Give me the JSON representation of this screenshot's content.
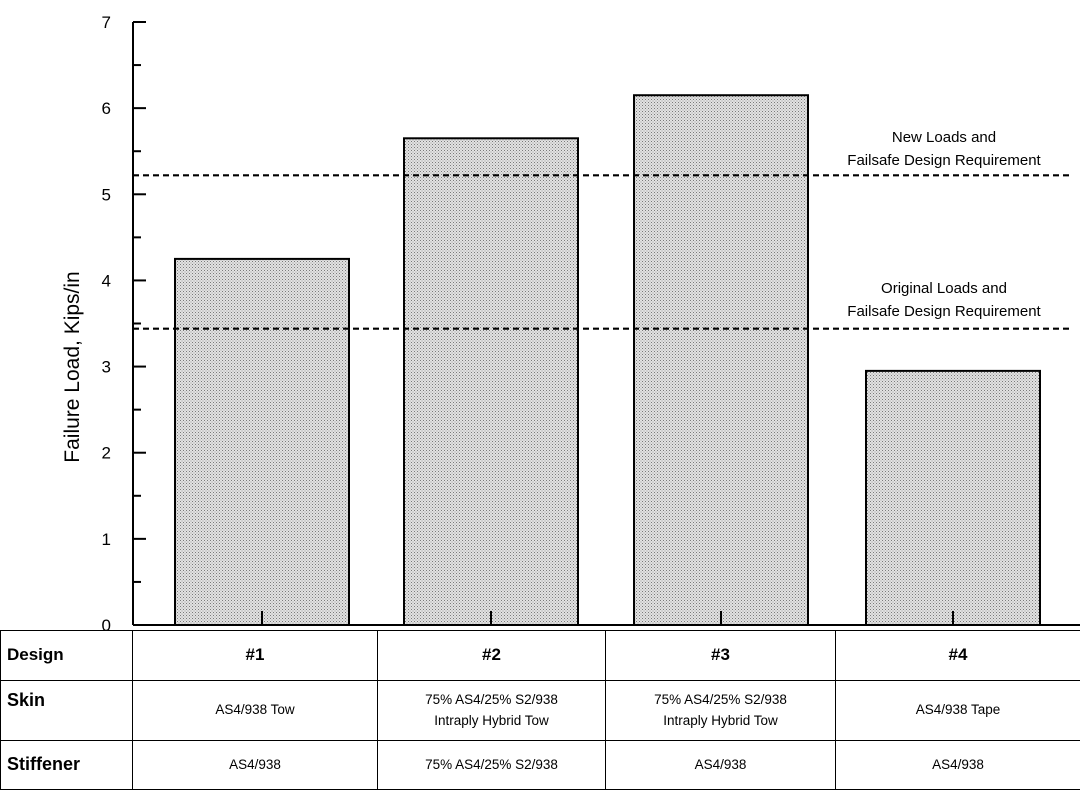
{
  "chart_data": {
    "type": "bar",
    "categories": [
      "#1",
      "#2",
      "#3",
      "#4"
    ],
    "values": [
      4.25,
      5.65,
      6.15,
      2.95
    ],
    "title": "",
    "xlabel": "",
    "ylabel": "Failure Load, Kips/in",
    "ylim": [
      0,
      7
    ],
    "yticks": [
      "0",
      "1",
      "2",
      "3",
      "4",
      "5",
      "6",
      "7"
    ],
    "bar_fill": "#d4d4d4",
    "reference_lines": [
      {
        "value": 5.22,
        "label_line1": "New Loads and",
        "label_line2": "Failsafe Design Requirement"
      },
      {
        "value": 3.44,
        "label_line1": "Original Loads and",
        "label_line2": "Failsafe Design Requirement"
      }
    ],
    "legend": "none",
    "grid": false
  },
  "table": {
    "headers": {
      "design": "Design",
      "skin": "Skin",
      "stiffener": "Stiffener"
    },
    "columns": [
      {
        "design": "#1",
        "skin_line1": "AS4/938 Tow",
        "skin_line2": "",
        "stiffener": "AS4/938"
      },
      {
        "design": "#2",
        "skin_line1": "75% AS4/25% S2/938",
        "skin_line2": "Intraply Hybrid Tow",
        "stiffener": "75% AS4/25% S2/938"
      },
      {
        "design": "#3",
        "skin_line1": "75% AS4/25% S2/938",
        "skin_line2": "Intraply Hybrid Tow",
        "stiffener": "AS4/938"
      },
      {
        "design": "#4",
        "skin_line1": "AS4/938 Tape",
        "skin_line2": "",
        "stiffener": "AS4/938"
      }
    ]
  }
}
